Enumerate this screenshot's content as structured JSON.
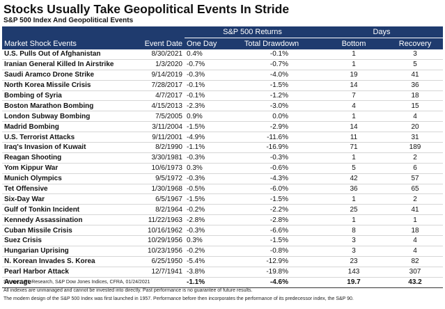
{
  "header": {
    "title": "Stocks Usually Take Geopolitical Events In Stride",
    "subtitle": "S&P 500 Index And Geopolitical Events"
  },
  "table": {
    "group_headers": [
      "S&P 500 Returns",
      "Days"
    ],
    "columns": [
      "Market Shock Events",
      "Event Date",
      "One Day",
      "Total Drawdown",
      "Bottom",
      "Recovery"
    ],
    "rows": [
      [
        "U.S. Pulls Out of Afghanistan",
        "8/30/2021",
        "0.4%",
        "-0.1%",
        "1",
        "3"
      ],
      [
        "Iranian General Killed In Airstrike",
        "1/3/2020",
        "-0.7%",
        "-0.7%",
        "1",
        "5"
      ],
      [
        "Saudi Aramco Drone Strike",
        "9/14/2019",
        "-0.3%",
        "-4.0%",
        "19",
        "41"
      ],
      [
        "North Korea Missile Crisis",
        "7/28/2017",
        "-0.1%",
        "-1.5%",
        "14",
        "36"
      ],
      [
        "Bombing of Syria",
        "4/7/2017",
        "-0.1%",
        "-1.2%",
        "7",
        "18"
      ],
      [
        "Boston Marathon Bombing",
        "4/15/2013",
        "-2.3%",
        "-3.0%",
        "4",
        "15"
      ],
      [
        "London Subway Bombing",
        "7/5/2005",
        "0.9%",
        "0.0%",
        "1",
        "4"
      ],
      [
        "Madrid Bombing",
        "3/11/2004",
        "-1.5%",
        "-2.9%",
        "14",
        "20"
      ],
      [
        "U.S. Terrorist Attacks",
        "9/11/2001",
        "-4.9%",
        "-11.6%",
        "11",
        "31"
      ],
      [
        "Iraq's Invasion of Kuwait",
        "8/2/1990",
        "-1.1%",
        "-16.9%",
        "71",
        "189"
      ],
      [
        "Reagan Shooting",
        "3/30/1981",
        "-0.3%",
        "-0.3%",
        "1",
        "2"
      ],
      [
        "Yom Kippur War",
        "10/6/1973",
        "0.3%",
        "-0.6%",
        "5",
        "6"
      ],
      [
        "Munich Olympics",
        "9/5/1972",
        "-0.3%",
        "-4.3%",
        "42",
        "57"
      ],
      [
        "Tet Offensive",
        "1/30/1968",
        "-0.5%",
        "-6.0%",
        "36",
        "65"
      ],
      [
        "Six-Day War",
        "6/5/1967",
        "-1.5%",
        "-1.5%",
        "1",
        "2"
      ],
      [
        "Gulf of Tonkin Incident",
        "8/2/1964",
        "-0.2%",
        "-2.2%",
        "25",
        "41"
      ],
      [
        "Kennedy Assassination",
        "11/22/1963",
        "-2.8%",
        "-2.8%",
        "1",
        "1"
      ],
      [
        "Cuban Missile Crisis",
        "10/16/1962",
        "-0.3%",
        "-6.6%",
        "8",
        "18"
      ],
      [
        "Suez Crisis",
        "10/29/1956",
        "0.3%",
        "-1.5%",
        "3",
        "4"
      ],
      [
        "Hungarian Uprising",
        "10/23/1956",
        "-0.2%",
        "-0.8%",
        "3",
        "4"
      ],
      [
        "N. Korean Invades S. Korea",
        "6/25/1950",
        "-5.4%",
        "-12.9%",
        "23",
        "82"
      ],
      [
        "Pearl Harbor Attack",
        "12/7/1941",
        "-3.8%",
        "-19.8%",
        "143",
        "307"
      ]
    ],
    "average": {
      "label": "Average",
      "one_day": "-1.1%",
      "total_drawdown": "-4.6%",
      "bottom": "19.7",
      "recovery": "43.2"
    }
  },
  "footnotes": [
    "Source: LPL Research, S&P Dow Jones Indices, CFRA, 01/24/2021",
    "All indexes are unmanaged and cannot be invested into directly.  Past performance is no guarantee of future results.",
    "The modern design of the S&P 500 Index was first launched in 1957. Performance before then incorporates the performance of its predecessor index, the S&P 90."
  ]
}
